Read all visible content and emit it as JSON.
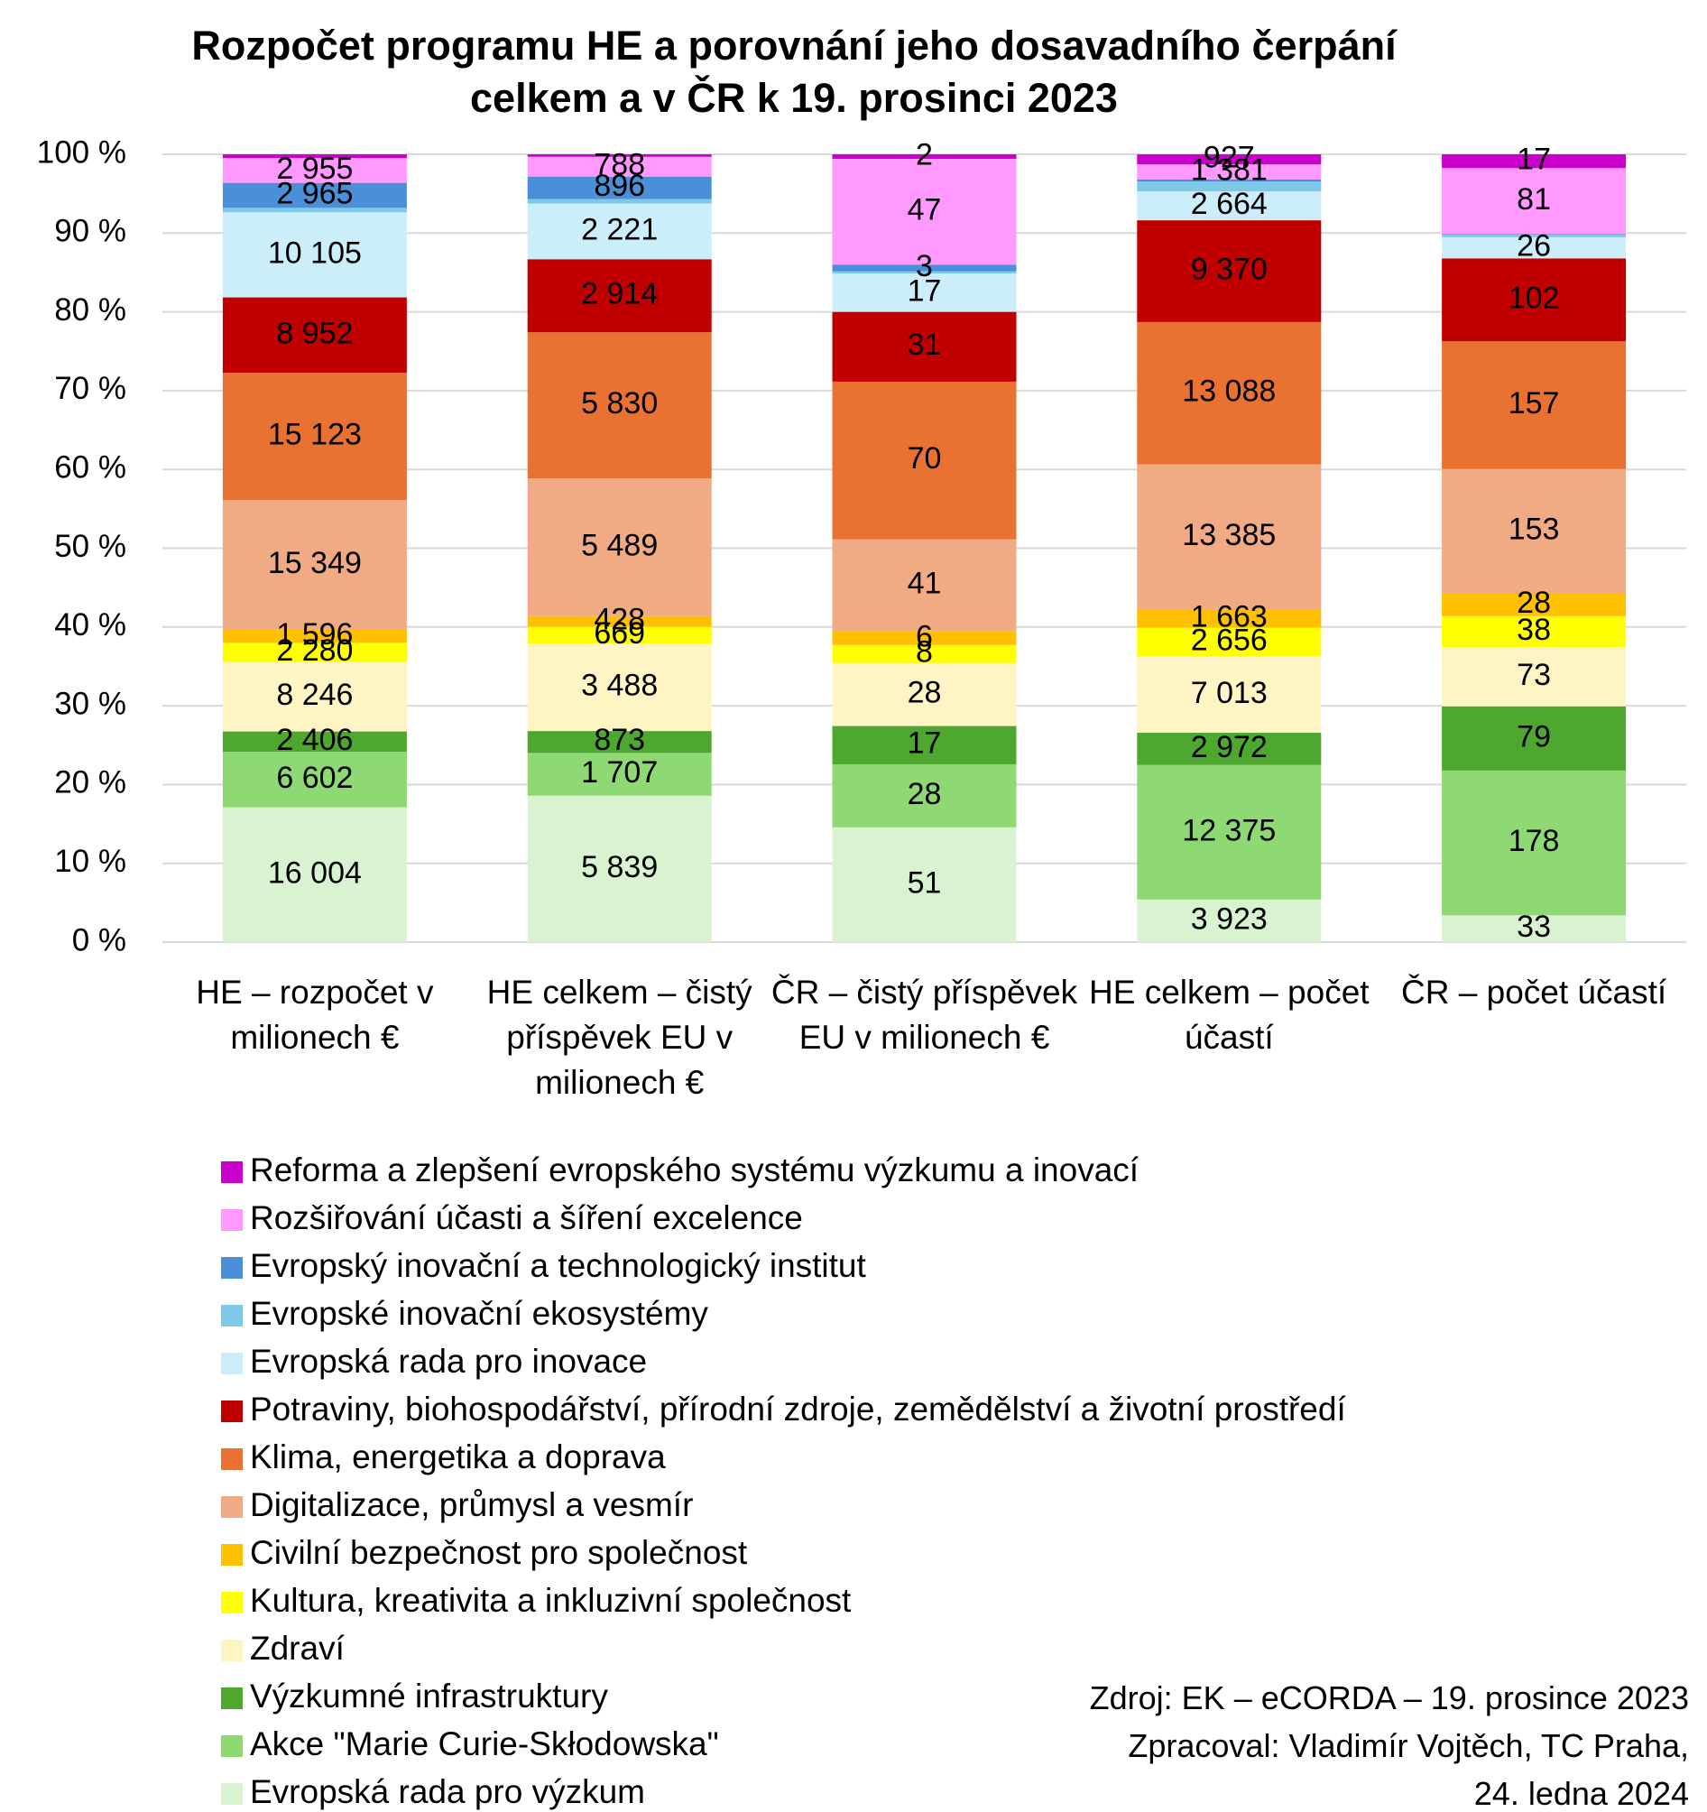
{
  "chart_data": {
    "type": "stacked_bar_100",
    "title": "Rozpočet programu HE a porovnání jeho dosavadního čerpání celkem a v ČR k 19. prosinci 2023",
    "categories": [
      "HE – rozpočet v milionech €",
      "HE celkem – čistý příspěvek EU v milionech €",
      "ČR – čistý příspěvek EU v milionech €",
      "HE celkem – počet účastí",
      "ČR – počet účastí"
    ],
    "ylim": [
      0,
      100
    ],
    "yticks": [
      {
        "value": 0,
        "label": "0 %"
      },
      {
        "value": 10,
        "label": "10 %"
      },
      {
        "value": 20,
        "label": "20 %"
      },
      {
        "value": 30,
        "label": "30 %"
      },
      {
        "value": 40,
        "label": "40 %"
      },
      {
        "value": 50,
        "label": "50 %"
      },
      {
        "value": 60,
        "label": "60 %"
      },
      {
        "value": 70,
        "label": "70 %"
      },
      {
        "value": 80,
        "label": "80 %"
      },
      {
        "value": 90,
        "label": "90 %"
      },
      {
        "value": 100,
        "label": "100 %"
      }
    ],
    "grid": true,
    "series": [
      {
        "name": "Evropská rada pro výzkum",
        "color": "#D9F2D0",
        "values": [
          16004,
          5839,
          51,
          3923,
          33
        ],
        "value_labels": [
          "16 004",
          "5 839",
          "51",
          "3 923",
          "33"
        ]
      },
      {
        "name": "Akce \"Marie Curie-Skłodowska\"",
        "color": "#8ED973",
        "values": [
          6602,
          1707,
          28,
          12375,
          178
        ],
        "value_labels": [
          "6 602",
          "1 707",
          "28",
          "12 375",
          "178"
        ]
      },
      {
        "name": "Výzkumné infrastruktury",
        "color": "#4EA72E",
        "values": [
          2406,
          873,
          17,
          2972,
          79
        ],
        "value_labels": [
          "2 406",
          "873",
          "17",
          "2 972",
          "79"
        ]
      },
      {
        "name": "Zdraví",
        "color": "#FFF5C4",
        "values": [
          8246,
          3488,
          28,
          7013,
          73
        ],
        "value_labels": [
          "8 246",
          "3 488",
          "28",
          "7 013",
          "73"
        ]
      },
      {
        "name": "Kultura, kreativita a inkluzivní společnost",
        "color": "#FFFF00",
        "values": [
          2280,
          669,
          8,
          2656,
          38
        ],
        "value_labels": [
          "2 280",
          "669",
          "8",
          "2 656",
          "38"
        ]
      },
      {
        "name": "Civilní bezpečnost pro společnost",
        "color": "#FFC000",
        "values": [
          1596,
          428,
          6,
          1663,
          28
        ],
        "value_labels": [
          "1 596",
          "428",
          "6",
          "1 663",
          "28"
        ]
      },
      {
        "name": "Digitalizace, průmysl a vesmír",
        "color": "#F0AA84",
        "values": [
          15349,
          5489,
          41,
          13385,
          153
        ],
        "value_labels": [
          "15 349",
          "5 489",
          "41",
          "13 385",
          "153"
        ]
      },
      {
        "name": "Klima, energetika a doprava",
        "color": "#E97132",
        "values": [
          15123,
          5830,
          70,
          13088,
          157
        ],
        "value_labels": [
          "15 123",
          "5 830",
          "70",
          "13 088",
          "157"
        ]
      },
      {
        "name": "Potraviny, biohospodářství, přírodní zdroje, zemědělství a životní prostředí",
        "color": "#C00000",
        "values": [
          8952,
          2914,
          31,
          9370,
          102
        ],
        "value_labels": [
          "8 952",
          "2 914",
          "31",
          "9 370",
          "102"
        ]
      },
      {
        "name": "Evropská rada pro inovace",
        "color": "#CCEEFA",
        "values": [
          10105,
          2221,
          17,
          2664,
          26
        ],
        "value_labels": [
          "10 105",
          "2 221",
          "17",
          "2 664",
          "26"
        ]
      },
      {
        "name": "Evropské inovační ekosystémy",
        "color": "#80C8E8",
        "values": [
          527,
          180,
          1,
          900,
          3
        ],
        "value_labels": [
          null,
          null,
          null,
          null,
          null
        ]
      },
      {
        "name": "Evropský inovační a technologický institut",
        "color": "#4A90D9",
        "values": [
          2965,
          896,
          3,
          200,
          1
        ],
        "value_labels": [
          "2 965",
          "896",
          "3",
          null,
          null
        ]
      },
      {
        "name": "Rozšiřování účasti a šíření excelence",
        "color": "#FF99FF",
        "values": [
          2955,
          788,
          47,
          1381,
          81
        ],
        "value_labels": [
          "2 955",
          "788",
          "47",
          "1 381",
          "81"
        ]
      },
      {
        "name": "Reforma a zlepšení evropského systému výzkumu a inovací",
        "color": "#CC00CC",
        "values": [
          438,
          100,
          2,
          927,
          17
        ],
        "value_labels": [
          null,
          null,
          "2",
          "927",
          "17"
        ]
      }
    ],
    "source": [
      "Zdroj: EK – eCORDA – 19. prosince 2023",
      "Zpracoval: Vladimír Vojtěch, TC Praha,",
      "24. ledna 2024"
    ]
  }
}
